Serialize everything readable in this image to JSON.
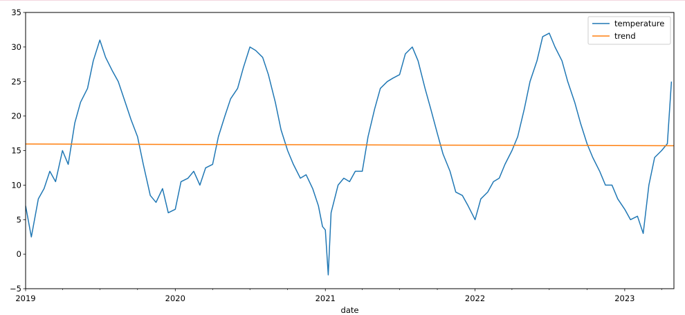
{
  "chart_data": {
    "type": "line",
    "title": "",
    "xlabel": "date",
    "ylabel": "",
    "xlim": [
      "2019-01-01",
      "2023-05-01"
    ],
    "ylim": [
      -5,
      35
    ],
    "x_tick_labels": [
      "2019",
      "2020",
      "2021",
      "2022",
      "2023"
    ],
    "y_tick_labels": [
      "−5",
      "0",
      "5",
      "10",
      "15",
      "20",
      "25",
      "30",
      "35"
    ],
    "legend_position": "top-right",
    "grid": false,
    "series": [
      {
        "name": "temperature",
        "color": "#1f77b4",
        "x": [
          "2019-01-01",
          "2019-01-15",
          "2019-02-01",
          "2019-02-15",
          "2019-03-01",
          "2019-03-15",
          "2019-04-01",
          "2019-04-15",
          "2019-05-01",
          "2019-05-15",
          "2019-06-01",
          "2019-06-15",
          "2019-07-01",
          "2019-07-15",
          "2019-08-01",
          "2019-08-15",
          "2019-09-01",
          "2019-09-15",
          "2019-10-01",
          "2019-10-15",
          "2019-11-01",
          "2019-11-15",
          "2019-12-01",
          "2019-12-15",
          "2020-01-01",
          "2020-01-15",
          "2020-02-01",
          "2020-02-15",
          "2020-03-01",
          "2020-03-15",
          "2020-04-01",
          "2020-04-15",
          "2020-05-01",
          "2020-05-15",
          "2020-06-01",
          "2020-06-15",
          "2020-07-01",
          "2020-07-15",
          "2020-08-01",
          "2020-08-15",
          "2020-09-01",
          "2020-09-15",
          "2020-10-01",
          "2020-10-15",
          "2020-11-01",
          "2020-11-15",
          "2020-12-01",
          "2020-12-15",
          "2020-12-25",
          "2021-01-01",
          "2021-01-08",
          "2021-01-15",
          "2021-02-01",
          "2021-02-15",
          "2021-03-01",
          "2021-03-15",
          "2021-04-01",
          "2021-04-15",
          "2021-05-01",
          "2021-05-15",
          "2021-06-01",
          "2021-06-15",
          "2021-07-01",
          "2021-07-15",
          "2021-08-01",
          "2021-08-15",
          "2021-09-01",
          "2021-09-15",
          "2021-10-01",
          "2021-10-15",
          "2021-11-01",
          "2021-11-15",
          "2021-12-01",
          "2021-12-15",
          "2022-01-01",
          "2022-01-15",
          "2022-02-01",
          "2022-02-15",
          "2022-03-01",
          "2022-03-15",
          "2022-04-01",
          "2022-04-15",
          "2022-05-01",
          "2022-05-15",
          "2022-06-01",
          "2022-06-15",
          "2022-07-01",
          "2022-07-15",
          "2022-08-01",
          "2022-08-15",
          "2022-09-01",
          "2022-09-15",
          "2022-10-01",
          "2022-10-15",
          "2022-11-01",
          "2022-11-15",
          "2022-12-01",
          "2022-12-15",
          "2023-01-01",
          "2023-01-15",
          "2023-02-01",
          "2023-02-15",
          "2023-03-01",
          "2023-03-15",
          "2023-04-01",
          "2023-04-15",
          "2023-04-25"
        ],
        "y": [
          7.0,
          2.5,
          8.0,
          9.5,
          12.0,
          10.5,
          15.0,
          13.0,
          19.0,
          22.0,
          24.0,
          28.0,
          31.0,
          28.5,
          26.5,
          25.0,
          22.0,
          19.5,
          17.0,
          13.0,
          8.5,
          7.5,
          9.5,
          6.0,
          6.5,
          10.5,
          11.0,
          12.0,
          10.0,
          12.5,
          13.0,
          17.0,
          20.0,
          22.5,
          24.0,
          27.0,
          30.0,
          29.5,
          28.5,
          26.0,
          22.0,
          18.0,
          15.0,
          13.0,
          11.0,
          11.5,
          9.5,
          7.0,
          4.0,
          3.5,
          -3.0,
          6.0,
          10.0,
          11.0,
          10.5,
          12.0,
          12.0,
          17.0,
          21.0,
          24.0,
          25.0,
          25.5,
          26.0,
          29.0,
          30.0,
          28.0,
          24.0,
          21.0,
          17.5,
          14.5,
          12.0,
          9.0,
          8.5,
          7.0,
          5.0,
          8.0,
          9.0,
          10.5,
          11.0,
          13.0,
          15.0,
          17.0,
          21.0,
          25.0,
          28.0,
          31.5,
          32.0,
          30.0,
          28.0,
          25.0,
          22.0,
          19.0,
          16.0,
          14.0,
          12.0,
          10.0,
          10.0,
          8.0,
          6.5,
          5.0,
          5.5,
          3.0,
          10.0,
          14.0,
          15.0,
          16.0,
          25.0
        ]
      },
      {
        "name": "trend",
        "color": "#ff7f0e",
        "x": [
          "2019-01-01",
          "2023-05-01"
        ],
        "y": [
          15.95,
          15.7
        ]
      }
    ]
  }
}
